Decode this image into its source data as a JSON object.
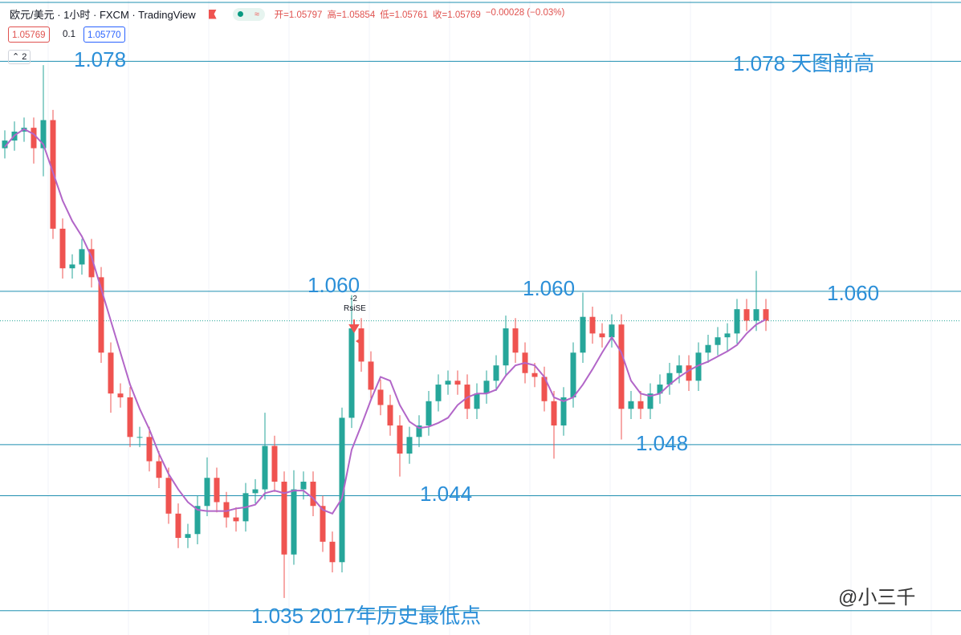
{
  "header": {
    "symbol": "欧元/美元 · 1小时 · FXCM · TradingView",
    "ohlc": [
      "开=1.05797",
      "高=1.05854",
      "低=1.05761",
      "收=1.05769",
      "−0.00028 (−0.03%)"
    ],
    "spread": "0.1",
    "ask": "1.05770",
    "indicator_count": "2"
  },
  "chart_data": {
    "type": "candlestick",
    "ylim": [
      1.0331,
      1.0828
    ],
    "up_color": "#26a69a",
    "down_color": "#ef5350",
    "open": [
      1.0712,
      1.0718,
      1.0725,
      1.0728,
      1.0712,
      1.0734,
      1.0649,
      1.0618,
      1.0621,
      1.0633,
      1.0611,
      1.0552,
      1.052,
      1.0517,
      1.0486,
      1.0486,
      1.0467,
      1.0454,
      1.0426,
      1.0407,
      1.041,
      1.0432,
      1.0454,
      1.0435,
      1.0423,
      1.042,
      1.0442,
      1.0445,
      1.0479,
      1.0451,
      1.0394,
      1.0445,
      1.0451,
      1.0432,
      1.0404,
      1.0388,
      1.0501,
      1.0571,
      1.0545,
      1.0523,
      1.0511,
      1.0495,
      1.0473,
      1.0486,
      1.0495,
      1.0514,
      1.0527,
      1.053,
      1.0527,
      1.0508,
      1.052,
      1.053,
      1.0542,
      1.0571,
      1.0552,
      1.0536,
      1.0533,
      1.0514,
      1.0495,
      1.0517,
      1.0552,
      1.058,
      1.0567,
      1.0564,
      1.0574,
      1.0508,
      1.0514,
      1.0508,
      1.052,
      1.0527,
      1.0536,
      1.0542,
      1.053,
      1.0552,
      1.0558,
      1.0564,
      1.0567,
      1.0586,
      1.0577,
      1.0586
    ],
    "high": [
      1.0726,
      1.0733,
      1.0736,
      1.0736,
      1.0777,
      1.0742,
      1.0657,
      1.0629,
      1.0641,
      1.0641,
      1.0619,
      1.056,
      1.0528,
      1.0525,
      1.0494,
      1.0494,
      1.0475,
      1.0462,
      1.0434,
      1.0418,
      1.044,
      1.047,
      1.0462,
      1.0443,
      1.0431,
      1.045,
      1.0453,
      1.0505,
      1.0487,
      1.0459,
      1.046,
      1.0459,
      1.0459,
      1.044,
      1.0412,
      1.0509,
      1.0597,
      1.0579,
      1.0553,
      1.0531,
      1.0519,
      1.0503,
      1.0494,
      1.0503,
      1.0522,
      1.0535,
      1.0538,
      1.0538,
      1.0535,
      1.0528,
      1.0538,
      1.055,
      1.0581,
      1.0579,
      1.056,
      1.0544,
      1.0541,
      1.0522,
      1.0525,
      1.056,
      1.0599,
      1.0588,
      1.0575,
      1.0582,
      1.0582,
      1.0522,
      1.0522,
      1.0528,
      1.0535,
      1.0544,
      1.055,
      1.055,
      1.056,
      1.0566,
      1.0572,
      1.0575,
      1.0594,
      1.0594,
      1.0616,
      1.0594
    ],
    "low": [
      1.0704,
      1.071,
      1.0717,
      1.07,
      1.069,
      1.0641,
      1.061,
      1.061,
      1.0613,
      1.0603,
      1.0544,
      1.0505,
      1.0509,
      1.0478,
      1.0478,
      1.0459,
      1.0446,
      1.0418,
      1.0399,
      1.0399,
      1.0402,
      1.0424,
      1.0427,
      1.0415,
      1.0412,
      1.0412,
      1.0434,
      1.0437,
      1.0443,
      1.036,
      1.0386,
      1.0437,
      1.0424,
      1.0396,
      1.038,
      1.038,
      1.0493,
      1.0537,
      1.0515,
      1.0503,
      1.0487,
      1.0455,
      1.0465,
      1.0478,
      1.0487,
      1.0506,
      1.0519,
      1.0519,
      1.05,
      1.05,
      1.0512,
      1.0522,
      1.0534,
      1.0544,
      1.0528,
      1.0525,
      1.0506,
      1.0469,
      1.0487,
      1.0509,
      1.0544,
      1.0559,
      1.0556,
      1.0556,
      1.0484,
      1.05,
      1.05,
      1.05,
      1.0512,
      1.0519,
      1.0528,
      1.0522,
      1.0522,
      1.0544,
      1.055,
      1.0553,
      1.0559,
      1.0569,
      1.0569,
      1.0569
    ],
    "close": [
      1.0718,
      1.0725,
      1.0728,
      1.0712,
      1.0734,
      1.0649,
      1.0618,
      1.0621,
      1.0633,
      1.0611,
      1.0552,
      1.052,
      1.0517,
      1.0486,
      1.0486,
      1.0467,
      1.0454,
      1.0426,
      1.0407,
      1.041,
      1.0432,
      1.0454,
      1.0435,
      1.0423,
      1.042,
      1.0442,
      1.0445,
      1.0479,
      1.0451,
      1.0394,
      1.0445,
      1.0451,
      1.0432,
      1.0404,
      1.0388,
      1.0501,
      1.0571,
      1.0545,
      1.0523,
      1.0511,
      1.0495,
      1.0473,
      1.0486,
      1.0495,
      1.0514,
      1.0527,
      1.053,
      1.0527,
      1.0508,
      1.052,
      1.053,
      1.0542,
      1.0571,
      1.0552,
      1.0536,
      1.0533,
      1.0514,
      1.0495,
      1.0517,
      1.0552,
      1.058,
      1.0567,
      1.0564,
      1.0574,
      1.0508,
      1.0514,
      1.0508,
      1.052,
      1.0527,
      1.0536,
      1.0542,
      1.053,
      1.0552,
      1.0558,
      1.0564,
      1.0567,
      1.0586,
      1.0577,
      1.0586,
      1.0577
    ],
    "ma": {
      "color": "#b266c8",
      "values": [
        1.0713,
        1.0722,
        1.0727,
        1.0723,
        1.0715,
        1.0693,
        1.0671,
        1.0655,
        1.0643,
        1.0627,
        1.0602,
        1.0577,
        1.0552,
        1.0527,
        1.0508,
        1.0492,
        1.0473,
        1.0457,
        1.0445,
        1.0435,
        1.0429,
        1.0428,
        1.0428,
        1.0428,
        1.043,
        1.0431,
        1.0433,
        1.0442,
        1.0444,
        1.0442,
        1.0444,
        1.0444,
        1.0438,
        1.0429,
        1.0426,
        1.0438,
        1.0476,
        1.0495,
        1.0515,
        1.0533,
        1.053,
        1.0511,
        1.0498,
        1.0493,
        1.0494,
        1.0497,
        1.0501,
        1.0511,
        1.0517,
        1.052,
        1.052,
        1.0523,
        1.0534,
        1.0542,
        1.0544,
        1.0542,
        1.0533,
        1.0517,
        1.0514,
        1.0517,
        1.0527,
        1.0539,
        1.0552,
        1.0564,
        1.0552,
        1.053,
        1.052,
        1.0518,
        1.052,
        1.0527,
        1.0533,
        1.0538,
        1.0542,
        1.0545,
        1.0549,
        1.0553,
        1.0558,
        1.0567,
        1.0574,
        1.0578
      ]
    },
    "last_price": 1.05769,
    "levels": [
      1.078,
      1.06,
      1.048,
      1.044,
      1.035
    ],
    "level_color": "#1f8fb0",
    "annotations": [
      "1.078",
      "1.078 天图前高",
      "1.060",
      "1.060",
      "1.060",
      "1.048",
      "1.044",
      "1.035  2017年历史最低点"
    ],
    "signal": {
      "count": "-2",
      "name": "RsiSE"
    }
  },
  "watermark": "@小三千"
}
